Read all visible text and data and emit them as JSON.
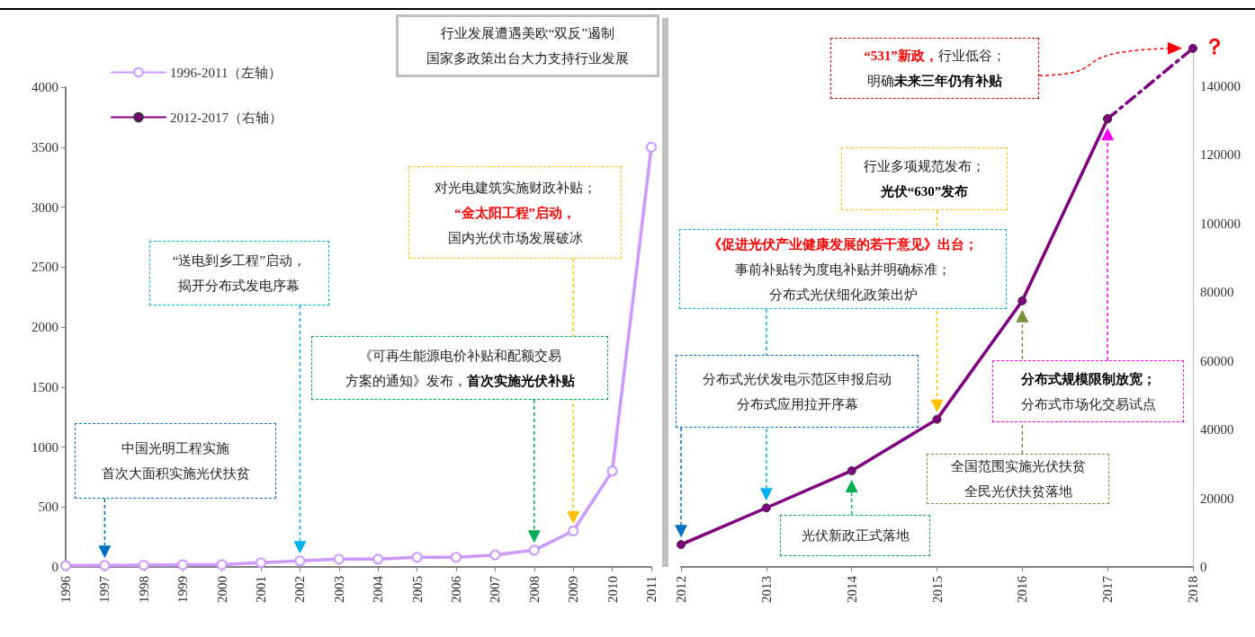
{
  "chart_data": [
    {
      "type": "line",
      "categories": [
        "1996",
        "1997",
        "1998",
        "1999",
        "2000",
        "2001",
        "2002",
        "2003",
        "2004",
        "2005",
        "2006",
        "2007",
        "2008",
        "2009",
        "2010",
        "2011"
      ],
      "ylim": [
        0,
        4000
      ],
      "yticks": [
        0,
        500,
        1000,
        1500,
        2000,
        2500,
        3000,
        3500,
        4000
      ],
      "marker": "circle",
      "legend": "top left",
      "series": [
        {
          "name": "1996-2011（左轴）",
          "color": "#cc99ff",
          "values": [
            11,
            13,
            15,
            19,
            19,
            35,
            50,
            65,
            65,
            80,
            80,
            100,
            140,
            300,
            800,
            3500
          ]
        }
      ],
      "annotations": [
        "中国光明工程实施首次大面积实施光伏扶贫",
        "“送电到乡工程”启动，揭开分布式发电序幕",
        "《可再生能源电价补贴和配额交易方案的通知》发布，首次实施光伏补贴",
        "对光电建筑实施财政补贴；“金太阳工程”启动，国内光伏市场发展破冰",
        "行业发展遭遇美欧“双反”遏制国家多政策出台大力支持行业发展"
      ]
    },
    {
      "type": "line",
      "categories": [
        "2012",
        "2013",
        "2014",
        "2015",
        "2016",
        "2017",
        "2018"
      ],
      "y2lim": [
        0,
        152000
      ],
      "y2ticks": [
        0,
        20000,
        40000,
        60000,
        80000,
        100000,
        120000,
        140000
      ],
      "marker": "circle",
      "legend": "top left",
      "series": [
        {
          "name": "2012-2017（右轴）",
          "color": "#800080",
          "axis": "y2",
          "values": [
            6500,
            17200,
            28000,
            43000,
            77500,
            130500,
            null
          ]
        },
        {
          "color": "#800080",
          "axis": "y2",
          "line_style": "dashed",
          "values": [
            null,
            null,
            null,
            null,
            null,
            130500,
            151000
          ]
        }
      ],
      "annotations": [
        "“531”新政，行业低谷；明确未来三年仍有补贴",
        "行业多项规范发布；光伏“630”发布",
        "《促进光伏产业健康发展的若干意见》出台；事前补贴转为度电补贴并明确标准；分布式光伏细化政策出炉",
        "分布式光伏发电示范区申报启动分布式应用拉开序幕",
        "光伏新政正式落地",
        "全国范围实施光伏扶贫全民光伏扶贫落地",
        "分布式规模限制放宽；分布式市场化交易试点",
        "？"
      ]
    }
  ]
}
